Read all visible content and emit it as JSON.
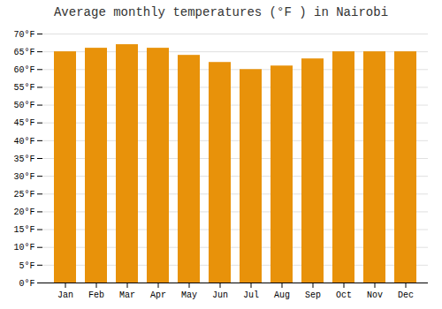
{
  "chart_data": {
    "type": "bar",
    "title": "Average monthly temperatures (°F ) in Nairobi",
    "categories": [
      "Jan",
      "Feb",
      "Mar",
      "Apr",
      "May",
      "Jun",
      "Jul",
      "Aug",
      "Sep",
      "Oct",
      "Nov",
      "Dec"
    ],
    "values": [
      65,
      66,
      67,
      66,
      64,
      62,
      60,
      61,
      63,
      65,
      65,
      65
    ],
    "color": "#E8920A",
    "ylim": [
      0,
      70
    ],
    "yticks": [
      {
        "value": 0,
        "label": "0°F"
      },
      {
        "value": 5,
        "label": "5°F"
      },
      {
        "value": 10,
        "label": "10°F"
      },
      {
        "value": 15,
        "label": "15°F"
      },
      {
        "value": 20,
        "label": "20°F"
      },
      {
        "value": 25,
        "label": "25°F"
      },
      {
        "value": 30,
        "label": "30°F"
      },
      {
        "value": 35,
        "label": "35°F"
      },
      {
        "value": 40,
        "label": "40°F"
      },
      {
        "value": 45,
        "label": "45°F"
      },
      {
        "value": 50,
        "label": "50°F"
      },
      {
        "value": 55,
        "label": "55°F"
      },
      {
        "value": 60,
        "label": "60°F"
      },
      {
        "value": 65,
        "label": "65°F"
      },
      {
        "value": 70,
        "label": "70°F"
      }
    ],
    "grid": true
  }
}
